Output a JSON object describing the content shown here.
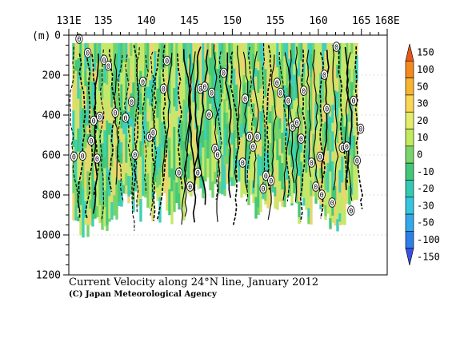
{
  "chart_data": {
    "type": "heatmap",
    "title": "Current Velocity along 24°N line, January 2012",
    "credit": "(C) Japan Meteorological Agency",
    "x_ticks": [
      "131E",
      "135",
      "140",
      "145",
      "150",
      "155",
      "160",
      "165",
      "168E"
    ],
    "x_tick_values": [
      131,
      135,
      140,
      145,
      150,
      155,
      160,
      165,
      168
    ],
    "xlim": [
      131,
      168
    ],
    "y_unit_label": "(m)",
    "y_ticks": [
      "0",
      "200",
      "400",
      "600",
      "800",
      "1000",
      "1200"
    ],
    "y_tick_values": [
      0,
      200,
      400,
      600,
      800,
      1000,
      1200
    ],
    "ylim": [
      0,
      1200
    ],
    "y_reversed": true,
    "grid": true,
    "contour_label": "0",
    "colorbar": {
      "levels": [
        "150",
        "100",
        "50",
        "30",
        "20",
        "10",
        "0",
        "-10",
        "-20",
        "-30",
        "-50",
        "-100",
        "-150"
      ],
      "colors": [
        "#e8561c",
        "#f28a1e",
        "#f7b431",
        "#f9d654",
        "#e4ec6a",
        "#c2ea5c",
        "#7bd46a",
        "#44c678",
        "#35c9b4",
        "#36c6dd",
        "#35a8ec",
        "#2e7fe6",
        "#3a4fe4"
      ]
    },
    "palette": {
      "strong_positive": "#e9d76e",
      "weak_positive": "#c6e86a",
      "near_zero": "#74d46c",
      "weak_negative": "#45c879",
      "strong_negative": "#3fd0b8"
    }
  }
}
